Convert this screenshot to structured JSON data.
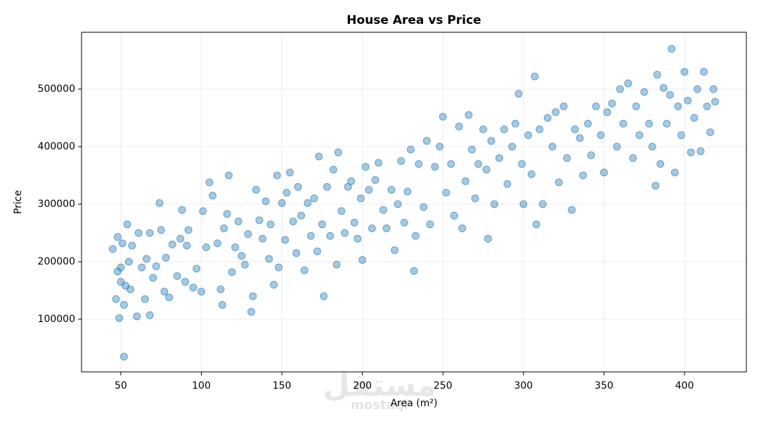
{
  "chart_data": {
    "type": "scatter",
    "title": "House Area vs Price",
    "xlabel": "Area (m²)",
    "ylabel": "Price",
    "watermark": [
      "مستقل",
      "mostaql"
    ],
    "color": "#1f77b4",
    "grid": true,
    "xlim": [
      25.6,
      438.4
    ],
    "ylim": [
      8500,
      598800
    ],
    "xticks": [
      50,
      100,
      150,
      200,
      250,
      300,
      350,
      400
    ],
    "yticks": [
      100000,
      200000,
      300000,
      400000,
      500000
    ],
    "x": [
      45,
      47,
      48,
      48,
      49,
      50,
      50,
      51,
      52,
      52,
      53,
      54,
      55,
      56,
      57,
      60,
      61,
      63,
      65,
      66,
      68,
      68,
      70,
      72,
      74,
      75,
      77,
      78,
      80,
      82,
      85,
      87,
      88,
      90,
      91,
      92,
      95,
      97,
      100,
      101,
      103,
      105,
      107,
      110,
      112,
      113,
      114,
      116,
      117,
      119,
      121,
      123,
      125,
      127,
      129,
      131,
      132,
      134,
      136,
      138,
      140,
      142,
      143,
      145,
      147,
      148,
      150,
      152,
      153,
      155,
      157,
      159,
      160,
      162,
      164,
      166,
      168,
      170,
      172,
      173,
      175,
      176,
      178,
      180,
      182,
      184,
      185,
      187,
      189,
      191,
      193,
      195,
      197,
      199,
      200,
      202,
      204,
      206,
      208,
      210,
      213,
      215,
      218,
      220,
      222,
      224,
      226,
      228,
      230,
      232,
      233,
      235,
      238,
      240,
      242,
      245,
      248,
      250,
      252,
      255,
      257,
      260,
      262,
      264,
      266,
      268,
      270,
      272,
      275,
      277,
      278,
      280,
      282,
      285,
      288,
      290,
      293,
      295,
      297,
      299,
      300,
      303,
      305,
      307,
      308,
      310,
      312,
      315,
      318,
      320,
      322,
      325,
      327,
      330,
      332,
      335,
      337,
      340,
      342,
      345,
      348,
      350,
      352,
      355,
      358,
      360,
      362,
      365,
      368,
      370,
      372,
      375,
      378,
      380,
      382,
      383,
      385,
      387,
      389,
      391,
      392,
      394,
      396,
      398,
      400,
      402,
      404,
      406,
      408,
      410,
      412,
      414,
      416,
      418,
      419
    ],
    "values": [
      222000,
      135000,
      243000,
      183000,
      102000,
      165000,
      190000,
      232000,
      35000,
      125000,
      158000,
      265000,
      200000,
      152000,
      228000,
      105000,
      250000,
      190000,
      135000,
      205000,
      107000,
      250000,
      172000,
      192000,
      302000,
      255000,
      148000,
      207000,
      138000,
      230000,
      175000,
      240000,
      290000,
      165000,
      228000,
      255000,
      155000,
      188000,
      148000,
      288000,
      225000,
      338000,
      315000,
      232000,
      152000,
      125000,
      258000,
      283000,
      350000,
      182000,
      225000,
      270000,
      210000,
      195000,
      248000,
      113000,
      140000,
      325000,
      272000,
      240000,
      305000,
      205000,
      265000,
      160000,
      350000,
      190000,
      302000,
      238000,
      320000,
      355000,
      270000,
      215000,
      330000,
      280000,
      185000,
      302000,
      245000,
      310000,
      218000,
      383000,
      265000,
      140000,
      330000,
      245000,
      360000,
      195000,
      390000,
      288000,
      250000,
      330000,
      340000,
      268000,
      240000,
      310000,
      203000,
      365000,
      325000,
      258000,
      342000,
      372000,
      290000,
      258000,
      325000,
      220000,
      300000,
      375000,
      268000,
      322000,
      395000,
      184000,
      245000,
      370000,
      295000,
      410000,
      265000,
      365000,
      400000,
      452000,
      320000,
      370000,
      280000,
      435000,
      258000,
      340000,
      455000,
      395000,
      310000,
      370000,
      430000,
      360000,
      240000,
      410000,
      300000,
      380000,
      430000,
      335000,
      400000,
      440000,
      492000,
      370000,
      300000,
      420000,
      352000,
      522000,
      265000,
      430000,
      300000,
      450000,
      400000,
      460000,
      338000,
      470000,
      380000,
      290000,
      430000,
      415000,
      350000,
      440000,
      385000,
      470000,
      420000,
      355000,
      460000,
      475000,
      400000,
      500000,
      440000,
      510000,
      380000,
      470000,
      420000,
      495000,
      440000,
      400000,
      332000,
      525000,
      370000,
      502000,
      440000,
      490000,
      570000,
      355000,
      470000,
      420000,
      530000,
      480000,
      390000,
      450000,
      500000,
      392000,
      530000,
      470000,
      425000,
      500000,
      478000
    ]
  }
}
